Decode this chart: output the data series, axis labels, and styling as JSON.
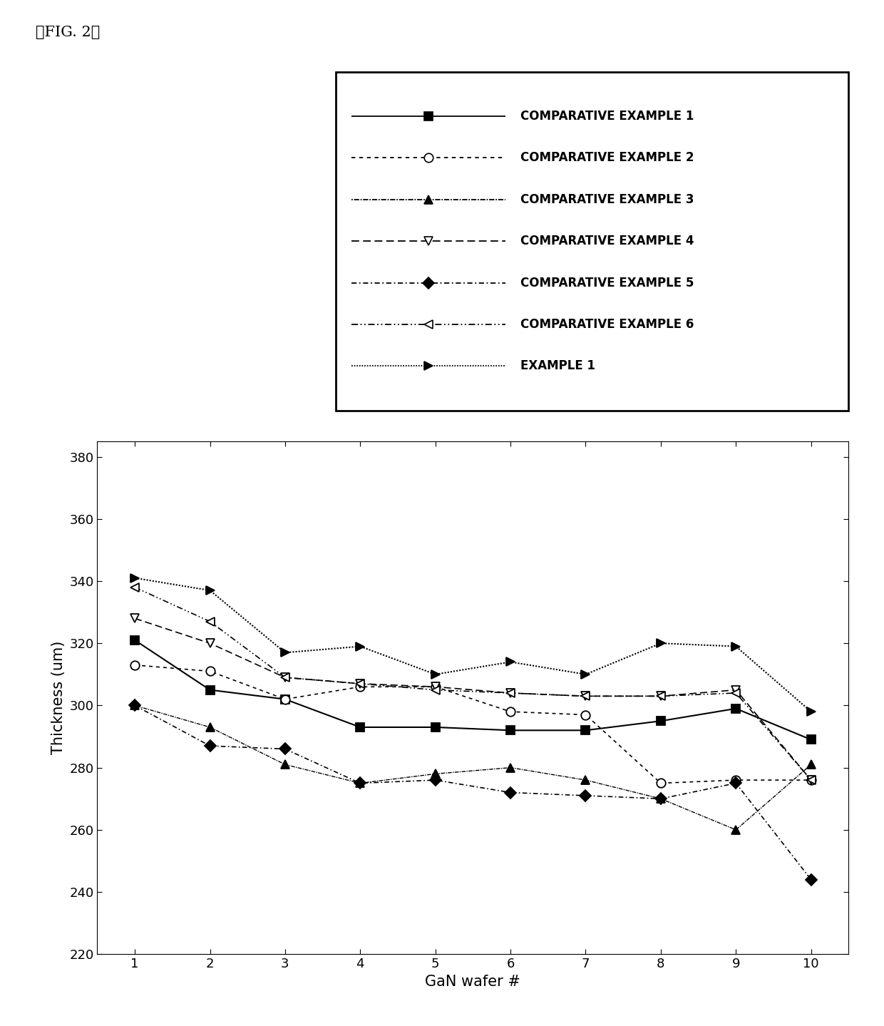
{
  "x": [
    1,
    2,
    3,
    4,
    5,
    6,
    7,
    8,
    9,
    10
  ],
  "series": {
    "COMPARATIVE EXAMPLE 1": {
      "y": [
        321,
        305,
        302,
        293,
        293,
        292,
        292,
        295,
        299,
        289
      ],
      "marker": "s",
      "markerfacecolor": "#000000",
      "markersize": 9,
      "linestyle": "-",
      "linewidth": 1.5
    },
    "COMPARATIVE EXAMPLE 2": {
      "y": [
        313,
        311,
        302,
        306,
        306,
        298,
        297,
        275,
        276,
        276
      ],
      "marker": "o",
      "markerfacecolor": "#ffffff",
      "markersize": 9,
      "linestyle": "dotted",
      "linewidth": 1.2
    },
    "COMPARATIVE EXAMPLE 3": {
      "y": [
        300,
        293,
        281,
        275,
        278,
        280,
        276,
        270,
        260,
        281
      ],
      "marker": "^",
      "markerfacecolor": "#000000",
      "markersize": 9,
      "linestyle": "densely_dotted",
      "linewidth": 1.0
    },
    "COMPARATIVE EXAMPLE 4": {
      "y": [
        328,
        320,
        309,
        307,
        306,
        304,
        303,
        303,
        305,
        276
      ],
      "marker": "v",
      "markerfacecolor": "#ffffff",
      "markersize": 9,
      "linestyle": "dashed",
      "linewidth": 1.2
    },
    "COMPARATIVE EXAMPLE 5": {
      "y": [
        300,
        287,
        286,
        275,
        276,
        272,
        271,
        270,
        275,
        244
      ],
      "marker": "D",
      "markerfacecolor": "#000000",
      "markersize": 8,
      "linestyle": "dashdot",
      "linewidth": 1.2
    },
    "COMPARATIVE EXAMPLE 6": {
      "y": [
        338,
        327,
        309,
        307,
        305,
        304,
        303,
        303,
        304,
        276
      ],
      "marker": "<",
      "markerfacecolor": "#ffffff",
      "markersize": 9,
      "linestyle": "dashdotdot",
      "linewidth": 1.2
    },
    "EXAMPLE 1": {
      "y": [
        341,
        337,
        317,
        319,
        310,
        314,
        310,
        320,
        319,
        298
      ],
      "marker": ">",
      "markerfacecolor": "#000000",
      "markersize": 9,
      "linestyle": "loosely_dotted",
      "linewidth": 1.5
    }
  },
  "xlabel": "GaN wafer #",
  "ylabel": "Thickness (um)",
  "ylim": [
    220,
    385
  ],
  "xlim": [
    0.5,
    10.5
  ],
  "yticks": [
    220,
    240,
    260,
    280,
    300,
    320,
    340,
    360,
    380
  ],
  "xticks": [
    1,
    2,
    3,
    4,
    5,
    6,
    7,
    8,
    9,
    10
  ],
  "fig_label": "』FIG. 2『",
  "background_color": "#ffffff"
}
